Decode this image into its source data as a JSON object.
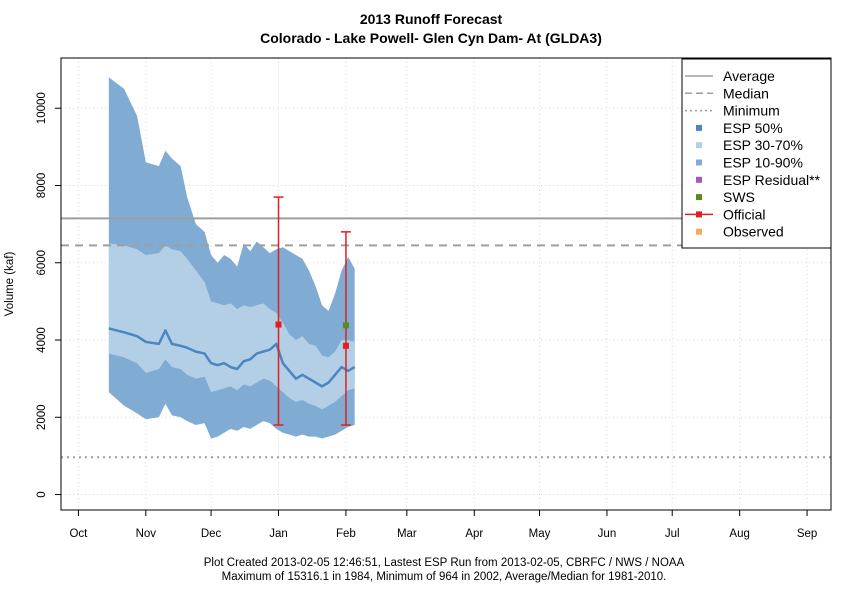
{
  "chart_data": {
    "type": "area",
    "title": "2013 Runoff Forecast",
    "subtitle": "Colorado - Lake Powell- Glen Cyn Dam- At (GLDA3)",
    "ylabel": "Volume (kaf)",
    "xlabel": "",
    "xlim": [
      "2012-09-23",
      "2013-09-12"
    ],
    "ylim": [
      -400,
      11300
    ],
    "x_ticks": [
      {
        "date": "2012-10-01",
        "label": "Oct"
      },
      {
        "date": "2012-11-01",
        "label": "Nov"
      },
      {
        "date": "2012-12-01",
        "label": "Dec"
      },
      {
        "date": "2013-01-01",
        "label": "Jan"
      },
      {
        "date": "2013-02-01",
        "label": "Feb"
      },
      {
        "date": "2013-03-01",
        "label": "Mar"
      },
      {
        "date": "2013-04-01",
        "label": "Apr"
      },
      {
        "date": "2013-05-01",
        "label": "May"
      },
      {
        "date": "2013-06-01",
        "label": "Jun"
      },
      {
        "date": "2013-07-01",
        "label": "Jul"
      },
      {
        "date": "2013-08-01",
        "label": "Aug"
      },
      {
        "date": "2013-09-01",
        "label": "Sep"
      }
    ],
    "y_ticks": [
      0,
      2000,
      4000,
      6000,
      8000,
      10000
    ],
    "grid": true,
    "reference_lines": {
      "average": 7150,
      "median": 6450,
      "minimum": 964
    },
    "esp_dates": [
      "2012-10-15",
      "2012-10-22",
      "2012-10-28",
      "2012-11-01",
      "2012-11-07",
      "2012-11-10",
      "2012-11-13",
      "2012-11-17",
      "2012-11-20",
      "2012-11-24",
      "2012-11-28",
      "2012-12-01",
      "2012-12-04",
      "2012-12-07",
      "2012-12-10",
      "2012-12-13",
      "2012-12-16",
      "2012-12-19",
      "2012-12-22",
      "2012-12-25",
      "2012-12-28",
      "2012-12-31",
      "2013-01-03",
      "2013-01-06",
      "2013-01-09",
      "2013-01-12",
      "2013-01-15",
      "2013-01-18",
      "2013-01-21",
      "2013-01-24",
      "2013-01-27",
      "2013-01-30",
      "2013-02-02",
      "2013-02-05"
    ],
    "esp_10": [
      2650,
      2300,
      2100,
      1950,
      2000,
      2350,
      2050,
      2000,
      1900,
      1800,
      1850,
      1450,
      1500,
      1600,
      1700,
      1650,
      1750,
      1700,
      1800,
      1900,
      1850,
      1700,
      1600,
      1550,
      1500,
      1550,
      1500,
      1500,
      1450,
      1500,
      1550,
      1650,
      1750,
      1800
    ],
    "esp_30": [
      3650,
      3550,
      3400,
      3150,
      3250,
      3500,
      3300,
      3250,
      3100,
      3000,
      3050,
      2650,
      2700,
      2750,
      2800,
      2700,
      2850,
      2800,
      2900,
      3000,
      2950,
      2800,
      2650,
      2500,
      2400,
      2450,
      2350,
      2300,
      2200,
      2300,
      2400,
      2550,
      2700,
      2750
    ],
    "esp_50": [
      4300,
      4200,
      4100,
      3950,
      3900,
      4250,
      3900,
      3850,
      3800,
      3700,
      3650,
      3400,
      3350,
      3400,
      3300,
      3250,
      3450,
      3500,
      3650,
      3700,
      3750,
      3900,
      3400,
      3200,
      3000,
      3100,
      3000,
      2900,
      2800,
      2900,
      3100,
      3300,
      3200,
      3300
    ],
    "esp_70": [
      6500,
      6450,
      6350,
      6200,
      6250,
      6450,
      6350,
      6300,
      6100,
      5800,
      5500,
      5000,
      4950,
      4900,
      4950,
      4800,
      4900,
      4850,
      4900,
      4950,
      4800,
      4700,
      4450,
      4150,
      4000,
      4100,
      3900,
      3850,
      3600,
      3550,
      3700,
      4000,
      4000,
      3950
    ],
    "esp_90": [
      10800,
      10500,
      9800,
      8600,
      8500,
      8900,
      8700,
      8500,
      7700,
      7000,
      6800,
      6200,
      6000,
      6200,
      6100,
      5900,
      6500,
      6300,
      6550,
      6400,
      6250,
      6350,
      6400,
      6300,
      6200,
      6100,
      5800,
      5400,
      4900,
      4750,
      5200,
      5800,
      6150,
      5850
    ],
    "series": [
      {
        "name": "Average",
        "style": "solid",
        "color": "#9e9e9e"
      },
      {
        "name": "Median",
        "style": "dashed",
        "color": "#9e9e9e"
      },
      {
        "name": "Minimum",
        "style": "dotted",
        "color": "#9e9e9e"
      },
      {
        "name": "ESP 50%",
        "color": "#4a86c0"
      },
      {
        "name": "ESP 30-70%",
        "color": "#b3cfe5"
      },
      {
        "name": "ESP 10-90%",
        "color": "#80acd3"
      },
      {
        "name": "ESP Residual**",
        "color": "#a05cb4"
      },
      {
        "name": "SWS",
        "color": "#5a8a1e"
      },
      {
        "name": "Official",
        "color": "#e02020"
      },
      {
        "name": "Observed",
        "color": "#f5a860"
      }
    ],
    "official": [
      {
        "date": "2013-01-01",
        "low": 1800,
        "high": 7700,
        "value": 4400
      },
      {
        "date": "2013-02-01",
        "low": 1800,
        "high": 6800,
        "value": 3850
      }
    ],
    "sws": [
      {
        "date": "2013-01-01",
        "value": 4400
      },
      {
        "date": "2013-02-01",
        "value": 4380
      }
    ],
    "legend_position": "top-right"
  },
  "footer": {
    "line1": "Plot Created 2013-02-05 12:46:51, Lastest ESP Run from 2013-02-05, CBRFC / NWS / NOAA",
    "line2": "Maximum of 15316.1 in 1984, Minimum of 964 in 2002, Average/Median for 1981-2010."
  }
}
